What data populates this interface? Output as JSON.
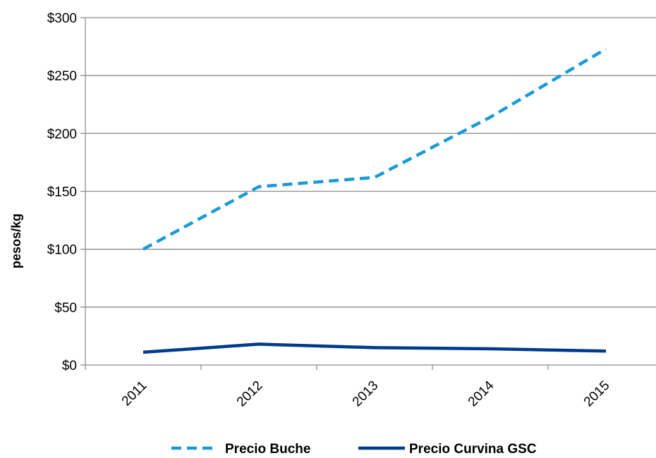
{
  "chart_data": {
    "type": "line",
    "title": "",
    "xlabel": "",
    "ylabel": "pesos/kg",
    "x": [
      "2011",
      "2012",
      "2013",
      "2014",
      "2015"
    ],
    "ylim": [
      0,
      300
    ],
    "y_ticks": [
      0,
      50,
      100,
      150,
      200,
      250,
      300
    ],
    "y_tick_labels": [
      "$0",
      "$50",
      "$100",
      "$150",
      "$200",
      "$250",
      "$300"
    ],
    "grid": "horizontal",
    "legend_position": "bottom",
    "series": [
      {
        "name": "Precio Buche",
        "values": [
          100,
          154,
          162,
          214,
          273
        ],
        "color": "#1a9bd7",
        "dash": "dashed"
      },
      {
        "name": "Precio Curvina GSC",
        "values": [
          11,
          18,
          15,
          14,
          12
        ],
        "color": "#003a8c",
        "dash": "solid"
      }
    ]
  }
}
